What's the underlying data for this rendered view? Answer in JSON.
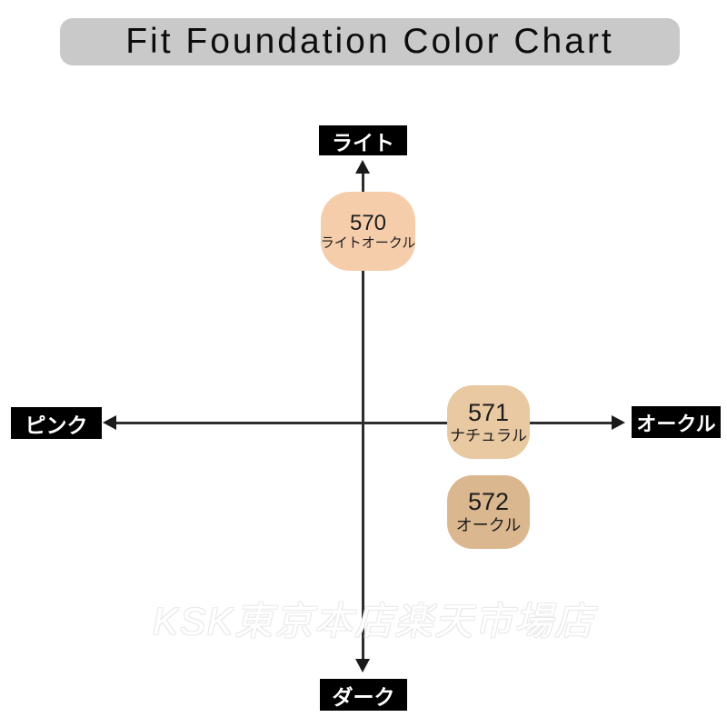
{
  "title": "Fit Foundation Color Chart",
  "axis_labels": {
    "top": "ライト",
    "bottom": "ダーク",
    "left": "ピンク",
    "right": "オークル"
  },
  "swatches": [
    {
      "code": "570",
      "label": "ライトオークル",
      "color": "#F6CDAB"
    },
    {
      "code": "571",
      "label": "ナチュラル",
      "color": "#E9C9A1"
    },
    {
      "code": "572",
      "label": "オークル",
      "color": "#DBB78F"
    }
  ],
  "watermark": "KSK東京本店楽天市場店",
  "colors": {
    "banner_bg": "#C9C9C9",
    "label_box_bg": "#000000",
    "label_box_text": "#FFFFFF",
    "axis_line": "#2D2D2D"
  },
  "chart_data": {
    "type": "scatter",
    "title": "Fit Foundation Color Chart",
    "axes": {
      "vertical_positive": "ライト",
      "vertical_negative": "ダーク",
      "horizontal_negative": "ピンク",
      "horizontal_positive": "オークル"
    },
    "xlim": [
      -1,
      1
    ],
    "ylim": [
      -1,
      1
    ],
    "grid": false,
    "legend": false,
    "points": [
      {
        "id": "570",
        "name": "ライトオークル",
        "color": "#F6CDAB",
        "x": 0.02,
        "y": 0.75
      },
      {
        "id": "571",
        "name": "ナチュラル",
        "color": "#E9C9A1",
        "x": 0.48,
        "y": 0.0
      },
      {
        "id": "572",
        "name": "オークル",
        "color": "#DBB78F",
        "x": 0.48,
        "y": -0.35
      }
    ]
  }
}
